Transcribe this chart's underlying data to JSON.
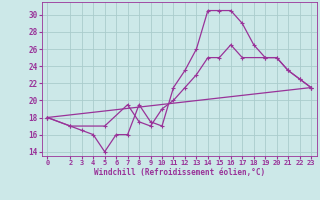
{
  "xlabel": "Windchill (Refroidissement éolien,°C)",
  "bg_color": "#cce8e8",
  "grid_color": "#aacccc",
  "line_color": "#993399",
  "xlim": [
    -0.5,
    23.5
  ],
  "ylim": [
    13.5,
    31.5
  ],
  "yticks": [
    14,
    16,
    18,
    20,
    22,
    24,
    26,
    28,
    30
  ],
  "xticks": [
    0,
    2,
    3,
    4,
    5,
    6,
    7,
    8,
    9,
    10,
    11,
    12,
    13,
    14,
    15,
    16,
    17,
    18,
    19,
    20,
    21,
    22,
    23
  ],
  "line1_x": [
    0,
    2,
    3,
    4,
    5,
    6,
    7,
    8,
    9,
    10,
    11,
    12,
    13,
    14,
    15,
    16,
    17,
    18,
    19,
    20,
    21,
    22,
    23
  ],
  "line1_y": [
    18,
    17,
    16.5,
    16,
    14,
    16,
    16,
    19.5,
    17.5,
    17,
    21.5,
    23.5,
    26,
    30.5,
    30.5,
    30.5,
    29,
    26.5,
    25,
    25,
    23.5,
    22.5,
    21.5
  ],
  "line2_x": [
    0,
    23
  ],
  "line2_y": [
    18,
    21.5
  ],
  "line3_x": [
    0,
    2,
    5,
    7,
    8,
    9,
    10,
    11,
    12,
    13,
    14,
    15,
    16,
    17,
    19,
    20,
    21,
    22,
    23
  ],
  "line3_y": [
    18,
    17,
    17,
    19.5,
    17.5,
    17,
    19,
    20,
    21.5,
    23,
    25,
    25,
    26.5,
    25,
    25,
    25,
    23.5,
    22.5,
    21.5
  ]
}
